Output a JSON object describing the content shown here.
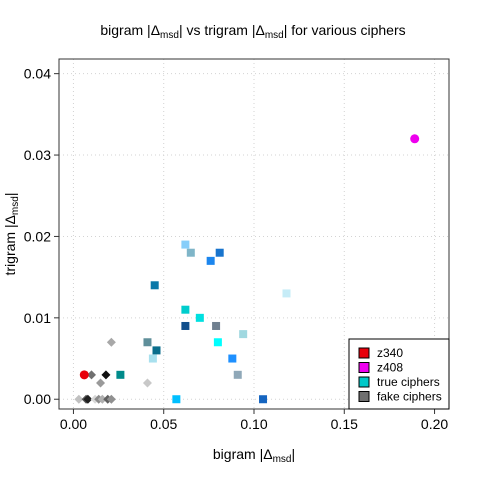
{
  "chart_data": {
    "type": "scatter",
    "title": "bigram |Δmsd| vs trigram |Δmsd| for various ciphers",
    "title_parts": {
      "a": "bigram |Δ",
      "sub1": "msd",
      "b": "| vs trigram |Δ",
      "sub2": "msd",
      "c": "| for various ciphers"
    },
    "xlabel": "bigram |Δmsd|",
    "xlabel_parts": {
      "main": "bigram |Δ",
      "sub": "msd",
      "end": "|"
    },
    "ylabel": "trigram |Δmsd|",
    "ylabel_parts": {
      "main": "trigram |Δ",
      "sub": "msd",
      "end": "|"
    },
    "xlim": [
      -0.008,
      0.208
    ],
    "ylim": [
      -0.0012,
      0.0418
    ],
    "xticks": [
      0.0,
      0.05,
      0.1,
      0.15,
      0.2
    ],
    "xtick_labels": [
      "0.00",
      "0.05",
      "0.10",
      "0.15",
      "0.20"
    ],
    "yticks": [
      0.0,
      0.01,
      0.02,
      0.03,
      0.04
    ],
    "ytick_labels": [
      "0.00",
      "0.01",
      "0.02",
      "0.03",
      "0.04"
    ],
    "grid": true,
    "legend_position": "bottom-right",
    "legend": [
      {
        "label": "z340",
        "color": "#e8000b"
      },
      {
        "label": "z408",
        "color": "#ee00ee"
      },
      {
        "label": "true ciphers",
        "color": "#00c8c8"
      },
      {
        "label": "fake ciphers",
        "color": "#707070"
      }
    ],
    "series": [
      {
        "name": "z340",
        "marker": "circle",
        "points": [
          {
            "x": 0.006,
            "y": 0.003,
            "color": "#e8000b"
          }
        ]
      },
      {
        "name": "z408",
        "marker": "circle",
        "points": [
          {
            "x": 0.189,
            "y": 0.032,
            "color": "#ee00ee"
          }
        ]
      },
      {
        "name": "true ciphers",
        "marker": "square",
        "points": [
          {
            "x": 0.026,
            "y": 0.003,
            "color": "#008b8b"
          },
          {
            "x": 0.041,
            "y": 0.007,
            "color": "#5f8f9a"
          },
          {
            "x": 0.044,
            "y": 0.005,
            "color": "#a8e0ee"
          },
          {
            "x": 0.046,
            "y": 0.006,
            "color": "#0a6e8c"
          },
          {
            "x": 0.045,
            "y": 0.014,
            "color": "#0a78a8"
          },
          {
            "x": 0.057,
            "y": 0.0,
            "color": "#00bfff"
          },
          {
            "x": 0.062,
            "y": 0.019,
            "color": "#87cefa"
          },
          {
            "x": 0.062,
            "y": 0.011,
            "color": "#00cdcd"
          },
          {
            "x": 0.062,
            "y": 0.009,
            "color": "#104e8b"
          },
          {
            "x": 0.065,
            "y": 0.018,
            "color": "#7fb5c8"
          },
          {
            "x": 0.07,
            "y": 0.01,
            "color": "#00e0e0"
          },
          {
            "x": 0.076,
            "y": 0.017,
            "color": "#1c86ee"
          },
          {
            "x": 0.079,
            "y": 0.009,
            "color": "#708090"
          },
          {
            "x": 0.08,
            "y": 0.007,
            "color": "#00ffff"
          },
          {
            "x": 0.081,
            "y": 0.018,
            "color": "#1874cd"
          },
          {
            "x": 0.088,
            "y": 0.005,
            "color": "#1e90ff"
          },
          {
            "x": 0.091,
            "y": 0.003,
            "color": "#8fa8b8"
          },
          {
            "x": 0.094,
            "y": 0.008,
            "color": "#a0d8e0"
          },
          {
            "x": 0.105,
            "y": 0.0,
            "color": "#1565c0"
          },
          {
            "x": 0.118,
            "y": 0.013,
            "color": "#c6ecf7"
          }
        ]
      },
      {
        "name": "fake ciphers",
        "marker": "diamond",
        "points": [
          {
            "x": 0.003,
            "y": 0.0,
            "color": "#c0c0c0"
          },
          {
            "x": 0.007,
            "y": 0.0,
            "color": "#555555"
          },
          {
            "x": 0.008,
            "y": 0.0,
            "color": "#202020"
          },
          {
            "x": 0.01,
            "y": 0.003,
            "color": "#707070"
          },
          {
            "x": 0.012,
            "y": 0.0,
            "color": "#d8d8d8"
          },
          {
            "x": 0.014,
            "y": 0.0,
            "color": "#8a8a8a"
          },
          {
            "x": 0.015,
            "y": 0.002,
            "color": "#9a9a9a"
          },
          {
            "x": 0.016,
            "y": 0.0,
            "color": "#b0b0b0"
          },
          {
            "x": 0.018,
            "y": 0.003,
            "color": "#101010"
          },
          {
            "x": 0.019,
            "y": 0.0,
            "color": "#606060"
          },
          {
            "x": 0.021,
            "y": 0.007,
            "color": "#a8a8a8"
          },
          {
            "x": 0.021,
            "y": 0.0,
            "color": "#909090"
          },
          {
            "x": 0.041,
            "y": 0.002,
            "color": "#c8c8c8"
          }
        ]
      }
    ]
  }
}
